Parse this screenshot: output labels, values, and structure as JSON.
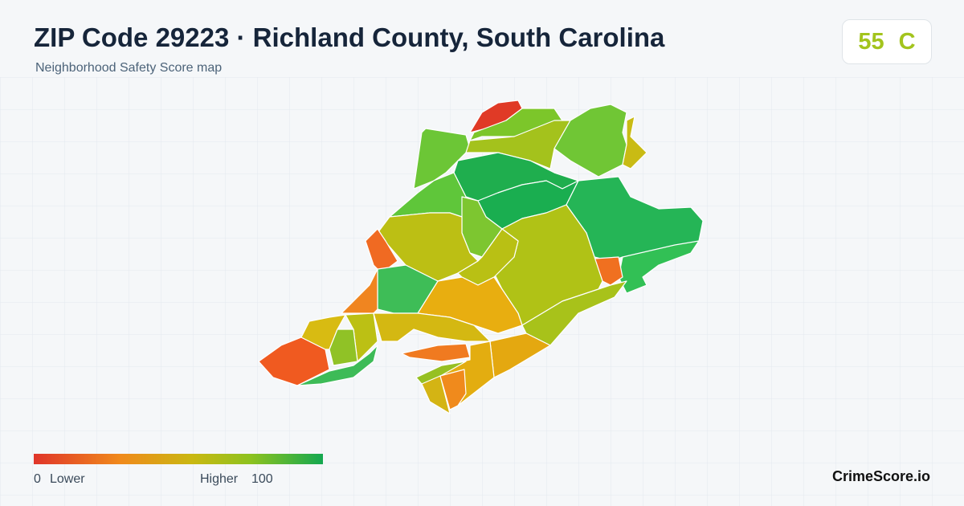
{
  "header": {
    "title": "ZIP Code 29223 · Richland County, South Carolina",
    "subtitle": "Neighborhood Safety Score map"
  },
  "score": {
    "value": 55,
    "grade": "C"
  },
  "legend": {
    "min": 0,
    "min_label": "Lower",
    "max_label": "Higher",
    "max": 100
  },
  "brand": "CrimeScore.io"
}
